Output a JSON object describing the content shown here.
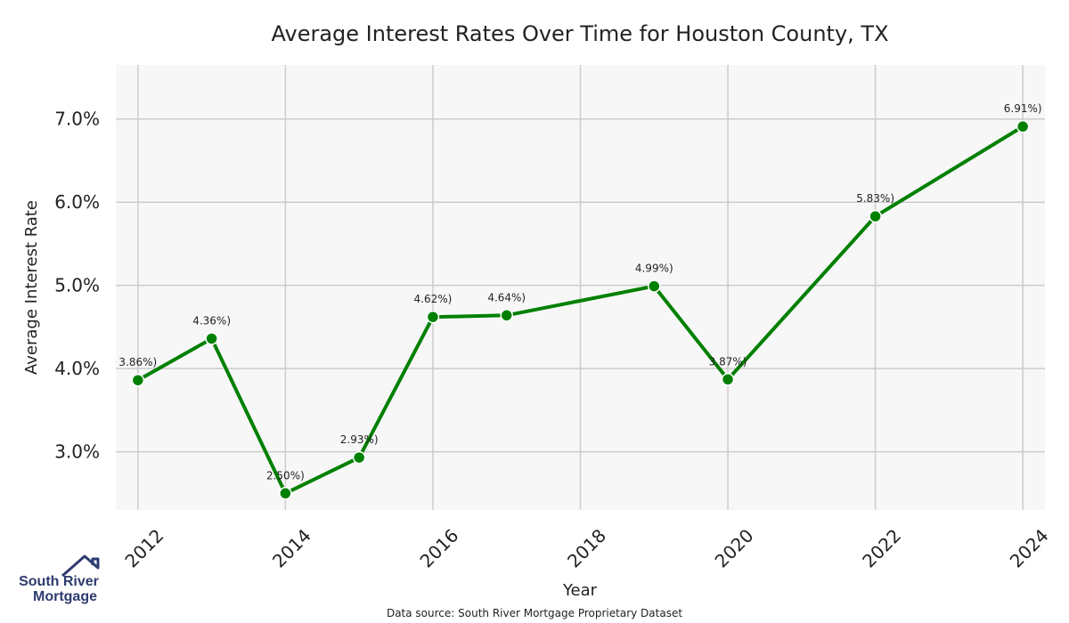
{
  "chart_data": {
    "type": "line",
    "title": "Average Interest Rates Over Time for Houston County, TX",
    "xlabel": "Year",
    "ylabel": "Average Interest Rate",
    "x": [
      2012,
      2013,
      2014,
      2015,
      2016,
      2017,
      2019,
      2020,
      2022,
      2024
    ],
    "values": [
      3.86,
      4.36,
      2.5,
      2.93,
      4.62,
      4.64,
      4.99,
      3.87,
      5.83,
      6.91
    ],
    "data_labels": [
      "3.86%)",
      "4.36%)",
      "2.50%)",
      "2.93%)",
      "4.62%)",
      "4.64%)",
      "4.99%)",
      "3.87%)",
      "5.83%)",
      "6.91%)"
    ],
    "xlim": [
      2011.7,
      2024.3
    ],
    "ylim": [
      2.3,
      7.65
    ],
    "xticks": [
      2012,
      2014,
      2016,
      2018,
      2020,
      2022,
      2024
    ],
    "xtick_labels": [
      "2012",
      "2014",
      "2016",
      "2018",
      "2020",
      "2022",
      "2024"
    ],
    "yticks": [
      3,
      4,
      5,
      6,
      7
    ],
    "ytick_labels": [
      "3.0%",
      "4.0%",
      "5.0%",
      "6.0%",
      "7.0%"
    ],
    "grid": true,
    "line_color": "#008000",
    "background": "#f7f7f7",
    "grid_color": "#cccccc"
  },
  "source_note": "Data source: South River Mortgage Proprietary Dataset",
  "logo": {
    "line1": "South River",
    "line2": "Mortgage",
    "icon": "house-roof-icon",
    "color": "#2d3b6e"
  }
}
